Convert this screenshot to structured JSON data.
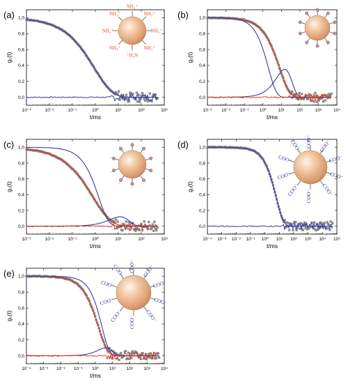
{
  "colors": {
    "data_points": "#808080",
    "fit_red": "#e03a1e",
    "fit_blue": "#3a3aa0",
    "particle": "#e8b896",
    "amine_label": "#d8502a",
    "carboxyl_label": "#3a3a9a",
    "pin_head": "#c9929a"
  },
  "chart_data": [
    {
      "panel": "(a)",
      "type": "line",
      "xscale": "log",
      "xlim": [
        0.001,
        1000
      ],
      "ylim": [
        -0.1,
        1.1
      ],
      "xlabel": "t/ms",
      "ylabel": "g₁(t)",
      "xticks": [
        "10⁻³",
        "10⁻²",
        "10⁻¹",
        "10⁰",
        "10¹",
        "10²",
        "10³"
      ],
      "yticks": [
        "0,0",
        "0,2",
        "0,4",
        "0,6",
        "0,8",
        "1,0"
      ],
      "decay": {
        "tau_ms": 0.9,
        "beta": 0.55
      },
      "curves": [
        "fit",
        "residuals"
      ],
      "particle_labels": [
        "NH₃⁺",
        "NH₃⁺",
        "NH₃⁺",
        "NH₃⁺",
        "⁺H₃N",
        "NH₃⁺",
        "NH₃⁺",
        "NH₃⁺"
      ]
    },
    {
      "panel": "(b)",
      "type": "line",
      "xscale": "log",
      "xlim": [
        0.001,
        10000
      ],
      "ylim": [
        -0.1,
        1.1
      ],
      "xlabel": "t/ms",
      "ylabel": "g₁(t)",
      "xticks": [
        "10⁻³",
        "10⁻²",
        "10⁻¹",
        "10⁰",
        "10¹",
        "10²",
        "10³",
        "10⁴"
      ],
      "yticks": [
        "0,0",
        "0,2",
        "0,4",
        "0,6",
        "0,8",
        "1,0"
      ],
      "decay": {
        "tau_ms": 8.0,
        "beta": 0.8
      },
      "fast_mode": {
        "tau_ms": 1.0,
        "amplitude": 0.65
      },
      "slow_mode": {
        "tau_ms": 15,
        "amplitude": 0.35
      },
      "curves": [
        "fit",
        "fast_mode",
        "slow_mode",
        "residuals"
      ],
      "particle_labels": []
    },
    {
      "panel": "(c)",
      "type": "line",
      "xscale": "log",
      "xlim": [
        0.001,
        1000
      ],
      "ylim": [
        -0.1,
        1.1
      ],
      "xlabel": "t/ms",
      "ylabel": "g₁(t)",
      "xticks": [
        "10⁻³",
        "10⁻²",
        "10⁻¹",
        "10⁰",
        "10¹",
        "10²",
        "10³"
      ],
      "yticks": [
        "0,0",
        "0,2",
        "0,4",
        "0,6",
        "0,8",
        "1,0"
      ],
      "decay": {
        "tau_ms": 0.8,
        "beta": 0.55
      },
      "fast_mode": {
        "tau_ms": 0.7,
        "amplitude": 0.88
      },
      "slow_mode": {
        "tau_ms": 12,
        "amplitude": 0.12
      },
      "curves": [
        "fit",
        "fast_mode",
        "slow_mode",
        "residuals"
      ],
      "particle_labels": []
    },
    {
      "panel": "(d)",
      "type": "line",
      "xscale": "log",
      "xlim": [
        0.0001,
        100000
      ],
      "ylim": [
        -0.1,
        1.1
      ],
      "xlabel": "t/ms",
      "ylabel": "g₁(t)",
      "xticks": [
        "10⁻⁴",
        "10⁻³",
        "10⁻²",
        "10⁻¹",
        "10⁰",
        "10¹",
        "10²",
        "10³",
        "10⁴",
        "10⁵"
      ],
      "yticks": [
        "0,0",
        "0,2",
        "0,4",
        "0,6",
        "0,8",
        "1,0"
      ],
      "decay": {
        "tau_ms": 6.0,
        "beta": 0.85
      },
      "curves": [
        "fit",
        "residuals"
      ],
      "particle_labels": [
        "COO⁻",
        "COO⁻",
        "COO⁻",
        "COO⁻",
        "COO⁻",
        "COO⁻",
        "COO⁻",
        "COO⁻",
        "COO⁻",
        "COO⁻"
      ]
    },
    {
      "panel": "(e)",
      "type": "line",
      "xscale": "log",
      "xlim": [
        0.0001,
        10000
      ],
      "ylim": [
        -0.1,
        1.1
      ],
      "xlabel": "t/ms",
      "ylabel": "g₁(t)",
      "xticks": [
        "10⁻⁴",
        "10⁻³",
        "10⁻²",
        "10⁻¹",
        "10⁰",
        "10¹",
        "10²",
        "10³",
        "10⁴"
      ],
      "yticks": [
        "0,0",
        "0,2",
        "0,4",
        "0,6",
        "0,8",
        "1,0"
      ],
      "decay": {
        "tau_ms": 1.5,
        "beta": 0.8
      },
      "fast_mode": {
        "tau_ms": 1.2,
        "amplitude": 0.9
      },
      "slow_mode": {
        "tau_ms": 4.0,
        "amplitude": 0.1
      },
      "curves": [
        "fit",
        "fast_mode",
        "slow_mode",
        "residuals"
      ],
      "particle_labels": [
        "COO⁻",
        "COO⁻",
        "COO⁻",
        "COO⁻",
        "COO⁻",
        "COO⁻",
        "COO⁻",
        "COO⁻",
        "COO⁻",
        "COO⁻"
      ]
    }
  ]
}
